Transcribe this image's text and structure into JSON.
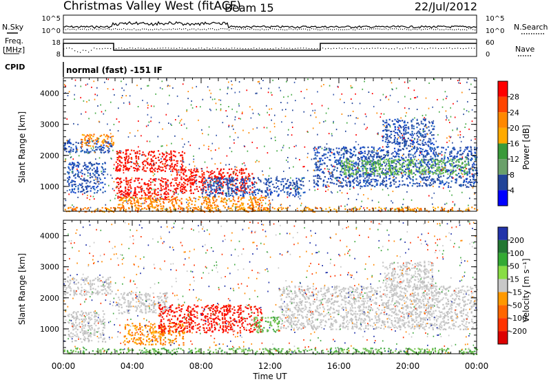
{
  "header": {
    "station": "Christmas Valley West (fitACF)",
    "beam": "Beam 15",
    "date": "22/Jul/2012"
  },
  "left_labels": {
    "nsky": "N.Sky",
    "freq_line1": "Freq.",
    "freq_line2": "[MHz]",
    "cpid": "CPID"
  },
  "right_labels": {
    "nsearch": "N.Search",
    "nave": "Nave"
  },
  "cpid_text": "normal (fast) -151 IF",
  "noise_axis": {
    "left_top": "10^5",
    "left_bottom": "10^0",
    "right_top": "10^5",
    "right_bottom": "10^0"
  },
  "freq_axis": {
    "left_top": "18",
    "left_bottom": "8",
    "right_top": "60",
    "right_bottom": "0"
  },
  "x_axis": {
    "title": "Time UT",
    "ticks": [
      "00:00",
      "04:00",
      "08:00",
      "12:00",
      "16:00",
      "20:00",
      "00:00"
    ]
  },
  "power_colorbar": {
    "label": "Power [dB]",
    "ticks": [
      "28",
      "24",
      "20",
      "16",
      "12",
      "8",
      "4"
    ],
    "colors": [
      "#ff0000",
      "#ff4400",
      "#ff8800",
      "#ffaa00",
      "#3a9a3a",
      "#6aa06a",
      "#224499",
      "#0000ff"
    ]
  },
  "velocity_colorbar": {
    "label": "Velocity [m s⁻¹]",
    "ticks": [
      "200",
      "100",
      "50",
      "15",
      "-15",
      "-50",
      "-100",
      "-200"
    ],
    "colors": [
      "#2233aa",
      "#227733",
      "#33aa33",
      "#88dd44",
      "#c8c8c8",
      "#ff9900",
      "#ff6600",
      "#ff3300",
      "#dd0000"
    ]
  },
  "chart_data": [
    {
      "type": "heatmap",
      "name": "power",
      "ylabel": "Slant Range [km]",
      "xlabel": "Time UT",
      "xlim_hours": [
        0,
        24
      ],
      "ylim_km": [
        200,
        4500
      ],
      "yticks": [
        "1000",
        "2000",
        "3000",
        "4000"
      ],
      "regions": [
        {
          "t0": 0.0,
          "t1": 2.8,
          "r0": 2100,
          "r1": 2500,
          "level": "blue"
        },
        {
          "t0": 1.0,
          "t1": 2.9,
          "r0": 2300,
          "r1": 2700,
          "level": "orange"
        },
        {
          "t0": 0.2,
          "t1": 2.4,
          "r0": 800,
          "r1": 1800,
          "level": "blue"
        },
        {
          "t0": 3.0,
          "t1": 7.0,
          "r0": 1500,
          "r1": 2200,
          "level": "red"
        },
        {
          "t0": 3.0,
          "t1": 6.5,
          "r0": 600,
          "r1": 1300,
          "level": "red"
        },
        {
          "t0": 6.5,
          "t1": 11.0,
          "r0": 800,
          "r1": 1600,
          "level": "red"
        },
        {
          "t0": 3.0,
          "t1": 12.0,
          "r0": 300,
          "r1": 700,
          "level": "orange"
        },
        {
          "t0": 8.0,
          "t1": 14.0,
          "r0": 700,
          "r1": 1300,
          "level": "blue"
        },
        {
          "t0": 14.5,
          "t1": 24.0,
          "r0": 1000,
          "r1": 2300,
          "level": "blue"
        },
        {
          "t0": 16.0,
          "t1": 23.5,
          "r0": 1400,
          "r1": 1900,
          "level": "green"
        },
        {
          "t0": 18.5,
          "t1": 21.5,
          "r0": 2300,
          "r1": 3200,
          "level": "blue"
        },
        {
          "t0": 0.0,
          "t1": 24.0,
          "r0": 200,
          "r1": 350,
          "level": "orange"
        }
      ]
    },
    {
      "type": "heatmap",
      "name": "velocity",
      "ylabel": "Slant Range [km]",
      "xlabel": "Time UT",
      "xlim_hours": [
        0,
        24
      ],
      "ylim_km": [
        200,
        4500
      ],
      "yticks": [
        "1000",
        "2000",
        "3000",
        "4000"
      ],
      "regions": [
        {
          "t0": 0.0,
          "t1": 2.8,
          "r0": 2100,
          "r1": 2700,
          "level": "gray"
        },
        {
          "t0": 0.2,
          "t1": 2.4,
          "r0": 600,
          "r1": 1600,
          "level": "gray"
        },
        {
          "t0": 3.0,
          "t1": 6.0,
          "r0": 1500,
          "r1": 2200,
          "level": "gray"
        },
        {
          "t0": 3.5,
          "t1": 7.0,
          "r0": 500,
          "r1": 1200,
          "level": "orange"
        },
        {
          "t0": 5.5,
          "t1": 11.5,
          "r0": 900,
          "r1": 1800,
          "level": "red"
        },
        {
          "t0": 11.0,
          "t1": 12.5,
          "r0": 900,
          "r1": 1400,
          "level": "green"
        },
        {
          "t0": 12.5,
          "t1": 24.0,
          "r0": 1000,
          "r1": 2400,
          "level": "gray"
        },
        {
          "t0": 18.5,
          "t1": 21.5,
          "r0": 2300,
          "r1": 3200,
          "level": "gray"
        },
        {
          "t0": 0.0,
          "t1": 24.0,
          "r0": 200,
          "r1": 400,
          "level": "green"
        }
      ]
    }
  ]
}
